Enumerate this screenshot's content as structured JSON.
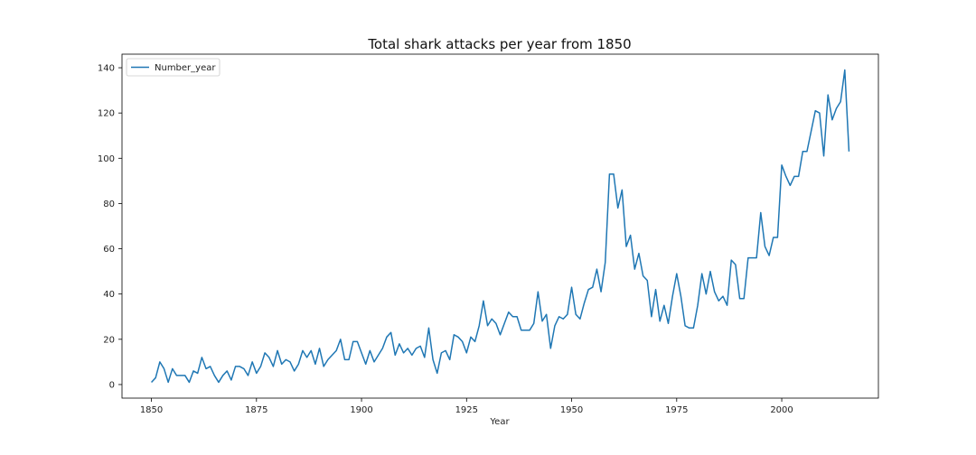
{
  "chart_data": {
    "type": "line",
    "title": "Total shark attacks per year from 1850",
    "xlabel": "Year",
    "ylabel": "",
    "xlim": [
      1843,
      2023
    ],
    "ylim": [
      -6,
      146
    ],
    "xticks": [
      1850,
      1875,
      1900,
      1925,
      1950,
      1975,
      2000
    ],
    "yticks": [
      0,
      20,
      40,
      60,
      80,
      100,
      120,
      140
    ],
    "grid": false,
    "legend_position": "top-left",
    "series": [
      {
        "name": "Number_year",
        "color": "#1f77b4",
        "x": [
          1850,
          1851,
          1852,
          1853,
          1854,
          1855,
          1856,
          1857,
          1858,
          1859,
          1860,
          1861,
          1862,
          1863,
          1864,
          1865,
          1866,
          1867,
          1868,
          1869,
          1870,
          1871,
          1872,
          1873,
          1874,
          1875,
          1876,
          1877,
          1878,
          1879,
          1880,
          1881,
          1882,
          1883,
          1884,
          1885,
          1886,
          1887,
          1888,
          1889,
          1890,
          1891,
          1892,
          1893,
          1894,
          1895,
          1896,
          1897,
          1898,
          1899,
          1900,
          1901,
          1902,
          1903,
          1904,
          1905,
          1906,
          1907,
          1908,
          1909,
          1910,
          1911,
          1912,
          1913,
          1914,
          1915,
          1916,
          1917,
          1918,
          1919,
          1920,
          1921,
          1922,
          1923,
          1924,
          1925,
          1926,
          1927,
          1928,
          1929,
          1930,
          1931,
          1932,
          1933,
          1934,
          1935,
          1936,
          1937,
          1938,
          1939,
          1940,
          1941,
          1942,
          1943,
          1944,
          1945,
          1946,
          1947,
          1948,
          1949,
          1950,
          1951,
          1952,
          1953,
          1954,
          1955,
          1956,
          1957,
          1958,
          1959,
          1960,
          1961,
          1962,
          1963,
          1964,
          1965,
          1966,
          1967,
          1968,
          1969,
          1970,
          1971,
          1972,
          1973,
          1974,
          1975,
          1976,
          1977,
          1978,
          1979,
          1980,
          1981,
          1982,
          1983,
          1984,
          1985,
          1986,
          1987,
          1988,
          1989,
          1990,
          1991,
          1992,
          1993,
          1994,
          1995,
          1996,
          1997,
          1998,
          1999,
          2000,
          2001,
          2002,
          2003,
          2004,
          2005,
          2006,
          2007,
          2008,
          2009,
          2010,
          2011,
          2012,
          2013,
          2014,
          2015,
          2016
        ],
        "y": [
          1,
          3,
          10,
          7,
          1,
          7,
          4,
          4,
          4,
          1,
          6,
          5,
          12,
          7,
          8,
          4,
          1,
          4,
          6,
          2,
          8,
          8,
          7,
          4,
          10,
          5,
          8,
          14,
          12,
          8,
          15,
          9,
          11,
          10,
          6,
          9,
          15,
          12,
          15,
          9,
          16,
          8,
          11,
          13,
          15,
          20,
          11,
          11,
          19,
          19,
          14,
          9,
          15,
          10,
          13,
          16,
          21,
          23,
          13,
          18,
          14,
          16,
          13,
          16,
          17,
          12,
          25,
          11,
          5,
          14,
          15,
          11,
          22,
          21,
          19,
          14,
          21,
          19,
          26,
          37,
          26,
          29,
          27,
          22,
          27,
          32,
          30,
          30,
          24,
          24,
          24,
          27,
          41,
          28,
          31,
          16,
          26,
          30,
          29,
          31,
          43,
          31,
          29,
          36,
          42,
          43,
          51,
          41,
          54,
          93,
          93,
          78,
          86,
          61,
          66,
          51,
          58,
          48,
          46,
          30,
          42,
          28,
          35,
          27,
          39,
          49,
          39,
          26,
          25,
          25,
          35,
          49,
          40,
          50,
          41,
          37,
          39,
          35,
          55,
          53,
          38,
          38,
          56,
          56,
          56,
          76,
          61,
          57,
          65,
          65,
          97,
          92,
          88,
          92,
          92,
          103,
          103,
          112,
          121,
          120,
          101,
          128,
          117,
          122,
          125,
          139,
          103
        ]
      }
    ]
  }
}
